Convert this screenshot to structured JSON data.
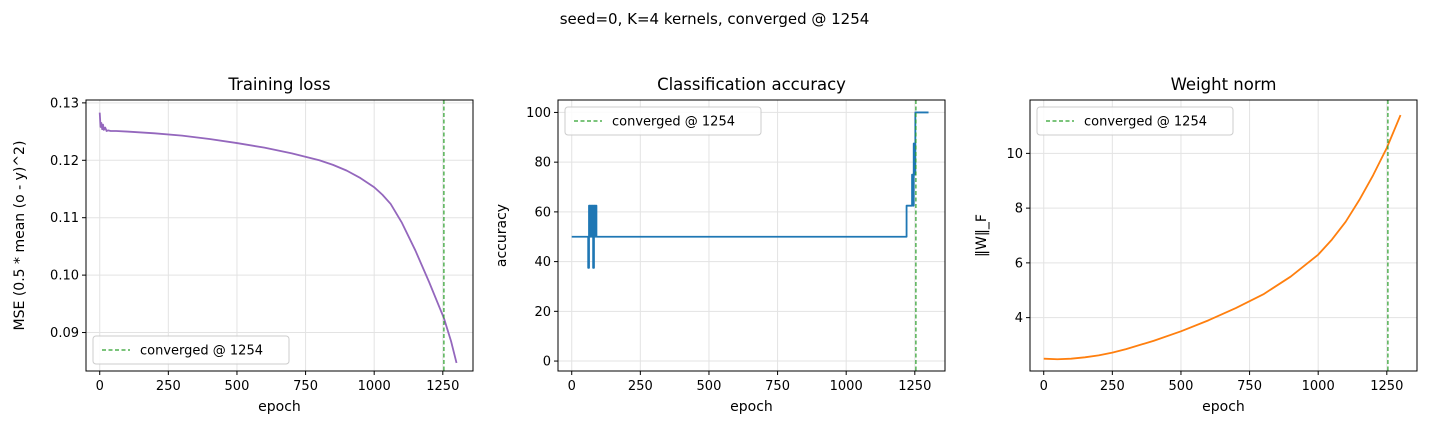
{
  "figure": {
    "suptitle": "seed=0,  K=4  kernels,  converged @ 1254"
  },
  "chart_data": [
    {
      "type": "line",
      "title": "Training loss",
      "xlabel": "epoch",
      "ylabel": "MSE  (0.5 * mean (o - y)^2)",
      "xlim": [
        -50,
        1360
      ],
      "ylim": [
        0.0833,
        0.1305
      ],
      "xticks": [
        0,
        250,
        500,
        750,
        1000,
        1250
      ],
      "yticks": [
        0.09,
        0.1,
        0.11,
        0.12,
        0.13
      ],
      "ytick_labels": [
        "0.09",
        "0.10",
        "0.11",
        "0.12",
        "0.13"
      ],
      "grid": true,
      "legend": {
        "placement": "lower-left",
        "label": "converged @ 1254"
      },
      "vline": {
        "x": 1254,
        "color": "#2ca02c",
        "style": "dashed"
      },
      "series": [
        {
          "color": "#9467bd",
          "x": [
            0,
            3,
            6,
            9,
            12,
            15,
            20,
            25,
            30,
            40,
            60,
            100,
            200,
            300,
            400,
            500,
            600,
            700,
            800,
            850,
            900,
            950,
            1000,
            1030,
            1060,
            1100,
            1150,
            1200,
            1254,
            1280,
            1300
          ],
          "y": [
            0.1283,
            0.1258,
            0.1265,
            0.1254,
            0.1262,
            0.1253,
            0.1257,
            0.1251,
            0.1252,
            0.1251,
            0.1251,
            0.125,
            0.1247,
            0.1243,
            0.1237,
            0.123,
            0.1222,
            0.1212,
            0.12,
            0.1192,
            0.1182,
            0.1169,
            0.1153,
            0.114,
            0.1124,
            0.1092,
            0.1043,
            0.0988,
            0.0925,
            0.0885,
            0.0847
          ]
        }
      ]
    },
    {
      "type": "line",
      "title": "Classification accuracy",
      "xlabel": "epoch",
      "ylabel": "accuracy",
      "xlim": [
        -50,
        1360
      ],
      "ylim": [
        -4,
        105
      ],
      "xticks": [
        0,
        250,
        500,
        750,
        1000,
        1250
      ],
      "yticks": [
        0,
        20,
        40,
        60,
        80,
        100
      ],
      "ytick_labels": [
        "0",
        "20",
        "40",
        "60",
        "80",
        "100"
      ],
      "grid": true,
      "legend": {
        "placement": "top-left",
        "label": "converged @ 1254"
      },
      "vline": {
        "x": 1254,
        "color": "#2ca02c",
        "style": "dashed"
      },
      "series": [
        {
          "color": "#1f77b4",
          "x": [
            0,
            60,
            60,
            63,
            63,
            66,
            66,
            69,
            69,
            72,
            72,
            75,
            75,
            78,
            78,
            81,
            81,
            84,
            84,
            87,
            87,
            90,
            90,
            1220,
            1220,
            1240,
            1240,
            1243,
            1243,
            1246,
            1246,
            1249,
            1249,
            1252,
            1252,
            1254,
            1254,
            1300
          ],
          "y": [
            50,
            50,
            37.5,
            37.5,
            62.5,
            62.5,
            50,
            50,
            62.5,
            62.5,
            50,
            50,
            62.5,
            62.5,
            37.5,
            37.5,
            62.5,
            62.5,
            50,
            50,
            62.5,
            62.5,
            50,
            50,
            62.5,
            62.5,
            75,
            75,
            62.5,
            62.5,
            87.5,
            87.5,
            75,
            75,
            100,
            100,
            100,
            100
          ]
        }
      ]
    },
    {
      "type": "line",
      "title": "Weight norm",
      "xlabel": "epoch",
      "ylabel": "‖W‖_F",
      "xlim": [
        -50,
        1360
      ],
      "ylim": [
        2.05,
        11.95
      ],
      "xticks": [
        0,
        250,
        500,
        750,
        1000,
        1250
      ],
      "yticks": [
        4,
        6,
        8,
        10
      ],
      "ytick_labels": [
        "4",
        "6",
        "8",
        "10"
      ],
      "grid": true,
      "legend": {
        "placement": "top-left",
        "label": "converged @ 1254"
      },
      "vline": {
        "x": 1254,
        "color": "#2ca02c",
        "style": "dashed"
      },
      "series": [
        {
          "color": "#ff7f0e",
          "x": [
            0,
            50,
            100,
            150,
            200,
            250,
            300,
            400,
            500,
            600,
            700,
            800,
            900,
            1000,
            1050,
            1100,
            1150,
            1200,
            1250,
            1300
          ],
          "y": [
            2.5,
            2.48,
            2.5,
            2.55,
            2.62,
            2.72,
            2.85,
            3.15,
            3.5,
            3.9,
            4.35,
            4.85,
            5.5,
            6.3,
            6.85,
            7.5,
            8.3,
            9.2,
            10.2,
            11.4
          ]
        }
      ]
    }
  ]
}
